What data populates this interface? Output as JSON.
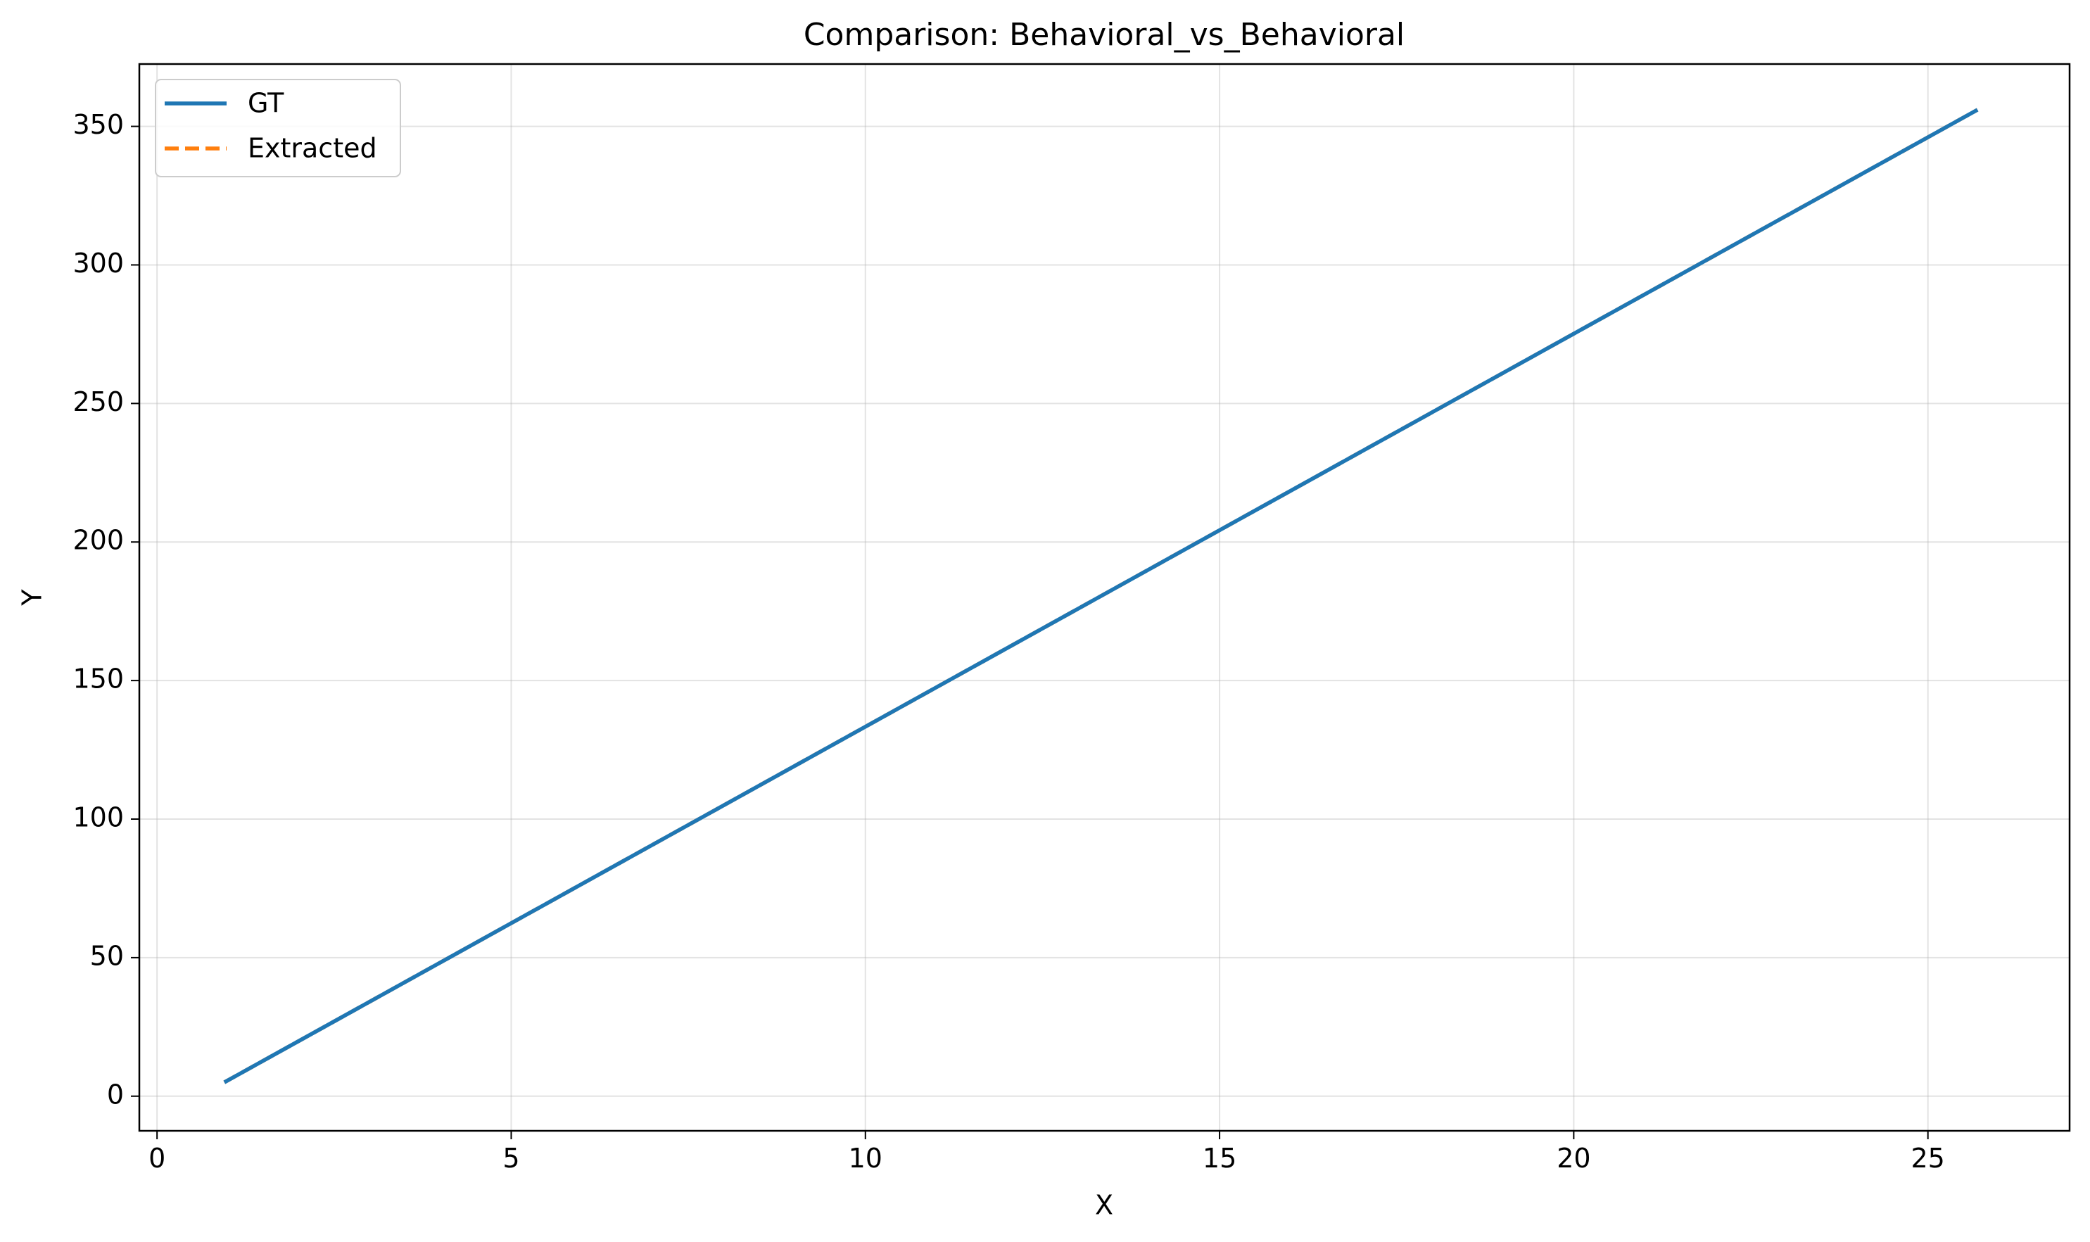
{
  "chart_data": {
    "type": "line",
    "title": "Comparison: Behavioral_vs_Behavioral",
    "xlabel": "X",
    "ylabel": "Y",
    "xlim": [
      -0.25,
      27.0
    ],
    "ylim": [
      -12.5,
      372.5
    ],
    "xticks": [
      0,
      5,
      10,
      15,
      20,
      25
    ],
    "yticks": [
      0,
      50,
      100,
      150,
      200,
      250,
      300,
      350
    ],
    "grid": true,
    "legend_position": "upper-left",
    "series": [
      {
        "name": "GT",
        "color": "#1f77b4",
        "style": "solid",
        "x": [
          0.95,
          25.7
        ],
        "y": [
          5,
          356
        ]
      },
      {
        "name": "Extracted",
        "color": "#ff7f0e",
        "style": "dashed",
        "x": [
          0.95,
          25.7
        ],
        "y": [
          5,
          356
        ]
      }
    ]
  }
}
